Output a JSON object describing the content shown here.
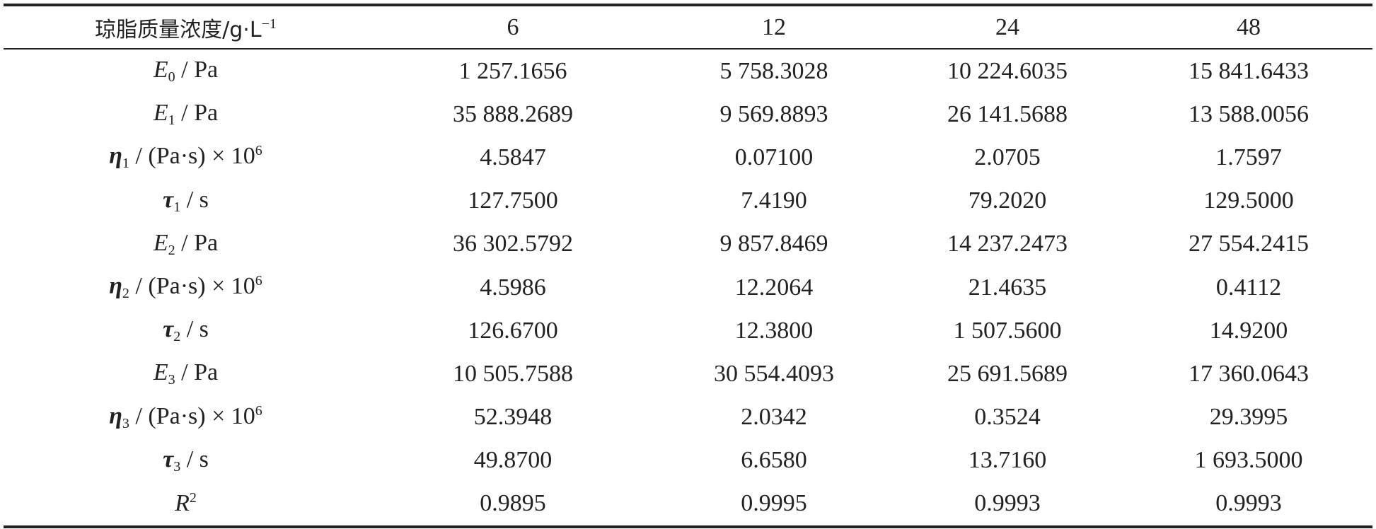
{
  "table": {
    "header": {
      "text": "琼脂质量浓度/g·L",
      "sup": "−1",
      "columns": [
        "6",
        "12",
        "24",
        "48"
      ]
    },
    "rows": [
      {
        "label": {
          "symbol": "E",
          "sub": "0",
          "text": " / Pa"
        },
        "cells": [
          "1 257.1656",
          "5 758.3028",
          "10 224.6035",
          "15 841.6433"
        ]
      },
      {
        "label": {
          "symbol": "E",
          "sub": "1",
          "text": " / Pa"
        },
        "cells": [
          "35 888.2689",
          "9 569.8893",
          "26 141.5688",
          "13 588.0056"
        ]
      },
      {
        "label": {
          "symbol": "η",
          "sub": "1",
          "text": " / (Pa·s) × 10",
          "sup": "6"
        },
        "cells": [
          "4.5847",
          "0.07100",
          "2.0705",
          "1.7597"
        ]
      },
      {
        "label": {
          "symbol": "τ",
          "sub": "1",
          "text": " / s"
        },
        "cells": [
          "127.7500",
          "7.4190",
          "79.2020",
          "129.5000"
        ]
      },
      {
        "label": {
          "symbol": "E",
          "sub": "2",
          "text": " / Pa"
        },
        "cells": [
          "36 302.5792",
          "9 857.8469",
          "14 237.2473",
          "27 554.2415"
        ]
      },
      {
        "label": {
          "symbol": "η",
          "sub": "2",
          "text": " / (Pa·s) × 10",
          "sup": "6"
        },
        "cells": [
          "4.5986",
          "12.2064",
          "21.4635",
          "0.4112"
        ]
      },
      {
        "label": {
          "symbol": "τ",
          "sub": "2",
          "text": " / s"
        },
        "cells": [
          "126.6700",
          "12.3800",
          "1 507.5600",
          "14.9200"
        ]
      },
      {
        "label": {
          "symbol": "E",
          "sub": "3",
          "text": " / Pa"
        },
        "cells": [
          "10 505.7588",
          "30 554.4093",
          "25 691.5689",
          "17 360.0643"
        ]
      },
      {
        "label": {
          "symbol": "η",
          "sub": "3",
          "text": " / (Pa·s) × 10",
          "sup": "6"
        },
        "cells": [
          "52.3948",
          "2.0342",
          "0.3524",
          "29.3995"
        ]
      },
      {
        "label": {
          "symbol": "τ",
          "sub": "3",
          "text": " / s"
        },
        "cells": [
          "49.8700",
          "6.6580",
          "13.7160",
          "1 693.5000"
        ]
      },
      {
        "label": {
          "symbol": "R",
          "sup": "2"
        },
        "cells": [
          "0.9895",
          "0.9995",
          "0.9993",
          "0.9993"
        ]
      }
    ]
  }
}
